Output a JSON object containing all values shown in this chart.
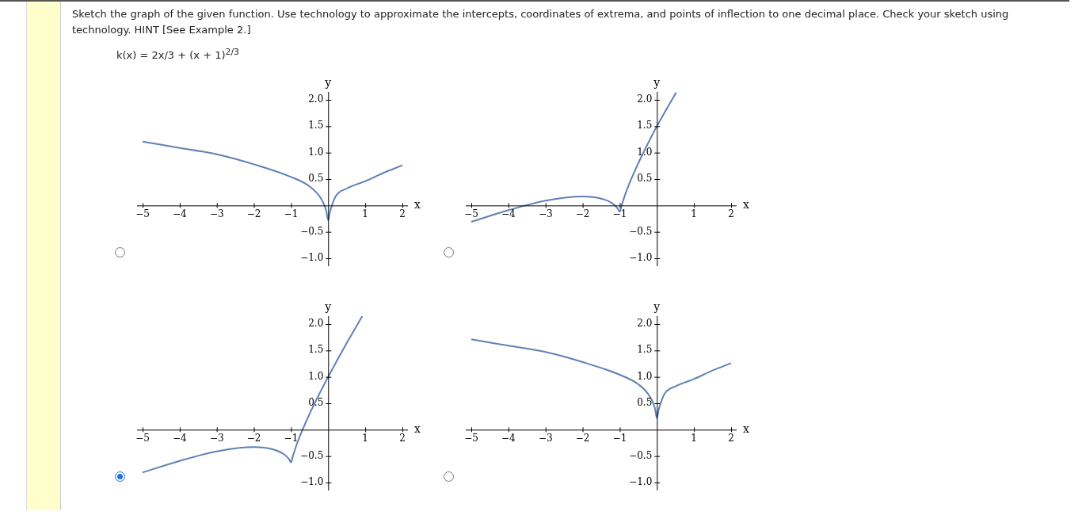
{
  "chart_data": [
    {
      "type": "line",
      "title": "Sketch the graph of the given function. Use technology to approximate the intercepts, coordinates of extrema, and points of inflection to one decimal place. Check your sketch using technology. HINT [See Example 2.]",
      "subtitle": "k(x) = 2x/3 + (x + 1)$^{2/3}$",
      "xlabel": "x",
      "ylabel": "y",
      "xlim": [
        -5.15,
        2.15
      ],
      "ylim": [
        -1.15,
        2.15
      ],
      "xticks": [
        {
          "value": -5,
          "label": "−5"
        },
        {
          "value": -4,
          "label": "−4"
        },
        {
          "value": -3,
          "label": "−3"
        },
        {
          "value": -2,
          "label": "−2"
        },
        {
          "value": -1,
          "label": "−1"
        },
        {
          "value": 1,
          "label": "1"
        },
        {
          "value": 2,
          "label": "2"
        }
      ],
      "yticks": [
        {
          "value": -1,
          "label": "−1.0"
        },
        {
          "value": -0.5,
          "label": "−0.5"
        },
        {
          "value": 0.5,
          "label": "0.5"
        },
        {
          "value": 1,
          "label": "1.0"
        },
        {
          "value": 1.5,
          "label": "1.5"
        },
        {
          "value": 2,
          "label": "2.0"
        }
      ],
      "x": [
        -5,
        -4,
        -3,
        -2,
        -1,
        -0.5,
        -0.2,
        -0.05,
        0,
        0.05,
        0.2,
        0.5,
        1,
        1.5,
        2
      ],
      "series": [
        {
          "color": "#5e81b5",
          "values": [
            1.21,
            1.09,
            0.97,
            0.78,
            0.54,
            0.36,
            0.14,
            -0.1,
            -0.28,
            -0.12,
            0.17,
            0.32,
            0.46,
            0.62,
            0.76
          ]
        }
      ]
    },
    {
      "type": "line",
      "xlabel": "x",
      "ylabel": "y",
      "xlim": [
        -5.15,
        2.15
      ],
      "ylim": [
        -1.15,
        2.15
      ],
      "xticks": [
        {
          "value": -5,
          "label": "−5"
        },
        {
          "value": -4,
          "label": "−4"
        },
        {
          "value": -3,
          "label": "−3"
        },
        {
          "value": -2,
          "label": "−2"
        },
        {
          "value": -1,
          "label": "−1"
        },
        {
          "value": 1,
          "label": "1"
        },
        {
          "value": 2,
          "label": "2"
        }
      ],
      "yticks": [
        {
          "value": -1,
          "label": "−1.0"
        },
        {
          "value": -0.5,
          "label": "−0.5"
        },
        {
          "value": 0.5,
          "label": "0.5"
        },
        {
          "value": 1,
          "label": "1.0"
        },
        {
          "value": 1.5,
          "label": "1.5"
        },
        {
          "value": 2,
          "label": "2.0"
        }
      ],
      "x": [
        -5,
        -4,
        -3,
        -2,
        -1.5,
        -1.2,
        -1.05,
        -1,
        -0.95,
        -0.8,
        -0.5,
        -0.2,
        0,
        0.52
      ],
      "series": [
        {
          "color": "#5e81b5",
          "values": [
            -0.31,
            -0.09,
            0.09,
            0.17,
            0.13,
            0.04,
            -0.06,
            -0.12,
            0.0,
            0.31,
            0.8,
            1.23,
            1.5,
            2.14
          ]
        }
      ]
    },
    {
      "type": "line",
      "xlabel": "x",
      "ylabel": "y",
      "xlim": [
        -5.15,
        2.15
      ],
      "ylim": [
        -1.15,
        2.15
      ],
      "xticks": [
        {
          "value": -5,
          "label": "−5"
        },
        {
          "value": -4,
          "label": "−4"
        },
        {
          "value": -3,
          "label": "−3"
        },
        {
          "value": -2,
          "label": "−2"
        },
        {
          "value": -1,
          "label": "−1"
        },
        {
          "value": 1,
          "label": "1"
        },
        {
          "value": 2,
          "label": "2"
        }
      ],
      "yticks": [
        {
          "value": -1,
          "label": "−1.0"
        },
        {
          "value": -0.5,
          "label": "−0.5"
        },
        {
          "value": 0.5,
          "label": "0.5"
        },
        {
          "value": 1,
          "label": "1.0"
        },
        {
          "value": 1.5,
          "label": "1.5"
        },
        {
          "value": 2,
          "label": "2.0"
        }
      ],
      "x": [
        -5,
        -4,
        -3,
        -2,
        -1.5,
        -1.2,
        -1.05,
        -1,
        -0.95,
        -0.8,
        -0.5,
        -0.2,
        0,
        0.5,
        0.92
      ],
      "series": [
        {
          "color": "#5e81b5",
          "values": [
            -0.81,
            -0.59,
            -0.41,
            -0.33,
            -0.37,
            -0.46,
            -0.56,
            -0.62,
            -0.5,
            -0.19,
            0.3,
            0.73,
            1.0,
            1.64,
            2.15
          ]
        }
      ]
    },
    {
      "type": "line",
      "xlabel": "x",
      "ylabel": "y",
      "xlim": [
        -5.15,
        2.15
      ],
      "ylim": [
        -1.15,
        2.15
      ],
      "xticks": [
        {
          "value": -5,
          "label": "−5"
        },
        {
          "value": -4,
          "label": "−4"
        },
        {
          "value": -3,
          "label": "−3"
        },
        {
          "value": -2,
          "label": "−2"
        },
        {
          "value": -1,
          "label": "−1"
        },
        {
          "value": 1,
          "label": "1"
        },
        {
          "value": 2,
          "label": "2"
        }
      ],
      "yticks": [
        {
          "value": -1,
          "label": "−1.0"
        },
        {
          "value": -0.5,
          "label": "−0.5"
        },
        {
          "value": 0.5,
          "label": "0.5"
        },
        {
          "value": 1,
          "label": "1.0"
        },
        {
          "value": 1.5,
          "label": "1.5"
        },
        {
          "value": 2,
          "label": "2.0"
        }
      ],
      "x": [
        -5,
        -4,
        -3,
        -2,
        -1,
        -0.5,
        -0.2,
        -0.05,
        0,
        0.05,
        0.2,
        0.5,
        1,
        1.5,
        2
      ],
      "series": [
        {
          "color": "#5e81b5",
          "values": [
            1.71,
            1.59,
            1.47,
            1.28,
            1.04,
            0.86,
            0.64,
            0.4,
            0.22,
            0.38,
            0.67,
            0.82,
            0.96,
            1.12,
            1.26
          ]
        }
      ]
    }
  ]
}
